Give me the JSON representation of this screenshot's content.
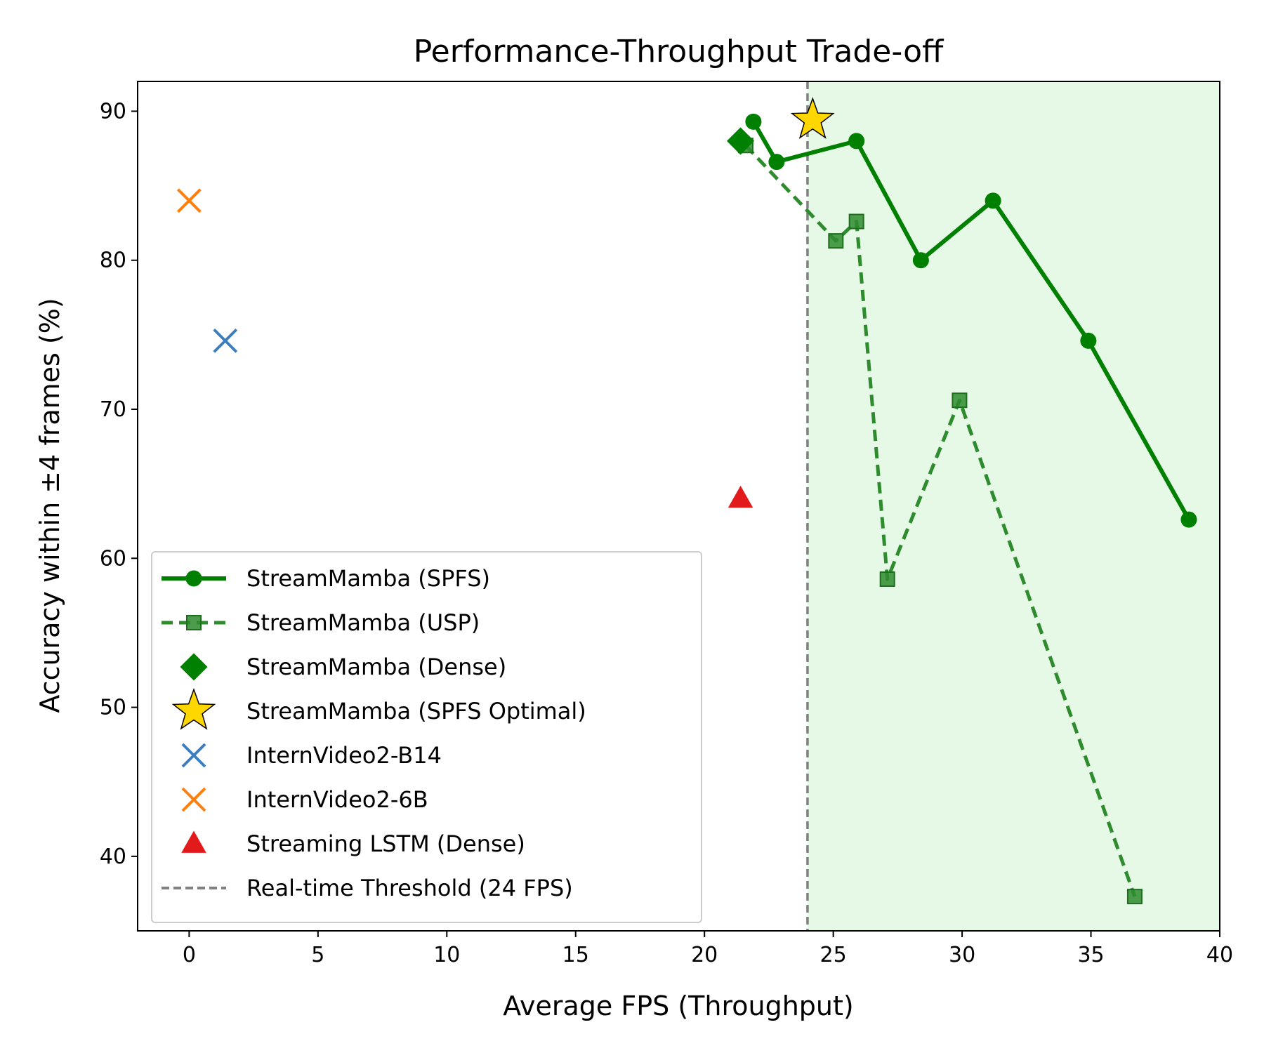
{
  "chart_data": {
    "type": "line",
    "title": "Performance-Throughput Trade-off",
    "xlabel": "Average FPS (Throughput)",
    "ylabel": "Accuracy within ±4 frames (%)",
    "xlim": [
      -2,
      40
    ],
    "ylim": [
      35,
      92
    ],
    "xticks": [
      0,
      5,
      10,
      15,
      20,
      25,
      30,
      35,
      40
    ],
    "yticks": [
      40,
      50,
      60,
      70,
      80,
      90
    ],
    "grid": false,
    "legend_position": "lower-left",
    "threshold": {
      "name": "Real-time Threshold (24 FPS)",
      "x": 24,
      "color": "#808080",
      "region_color": "#e6f9e6"
    },
    "series": [
      {
        "name": "StreamMamba (SPFS)",
        "marker": "circle",
        "line": "solid",
        "color": "#008000",
        "x": [
          21.9,
          22.8,
          25.9,
          28.4,
          31.2,
          34.9,
          38.8
        ],
        "y": [
          89.3,
          86.6,
          88.0,
          80.0,
          84.0,
          74.6,
          62.6
        ]
      },
      {
        "name": "StreamMamba (USP)",
        "marker": "square",
        "line": "dashed",
        "color": "#2e8b2e",
        "x": [
          21.6,
          25.1,
          25.9,
          27.1,
          29.9,
          36.7
        ],
        "y": [
          87.7,
          81.3,
          82.6,
          58.6,
          70.6,
          37.3
        ]
      },
      {
        "name": "StreamMamba (Dense)",
        "marker": "diamond",
        "line": "none",
        "color": "#008000",
        "x": [
          21.4
        ],
        "y": [
          88.0
        ]
      },
      {
        "name": "StreamMamba (SPFS Optimal)",
        "marker": "star",
        "line": "none",
        "color": "#ffd700",
        "x": [
          24.2
        ],
        "y": [
          89.4
        ]
      },
      {
        "name": "InternVideo2-B14",
        "marker": "x",
        "line": "none",
        "color": "#3a7ebf",
        "x": [
          1.4
        ],
        "y": [
          74.6
        ]
      },
      {
        "name": "InternVideo2-6B",
        "marker": "x",
        "line": "none",
        "color": "#ff7f0e",
        "x": [
          0.0
        ],
        "y": [
          84.0
        ]
      },
      {
        "name": "Streaming LSTM (Dense)",
        "marker": "triangle",
        "line": "none",
        "color": "#e31a1c",
        "x": [
          21.4
        ],
        "y": [
          64.0
        ]
      }
    ]
  }
}
